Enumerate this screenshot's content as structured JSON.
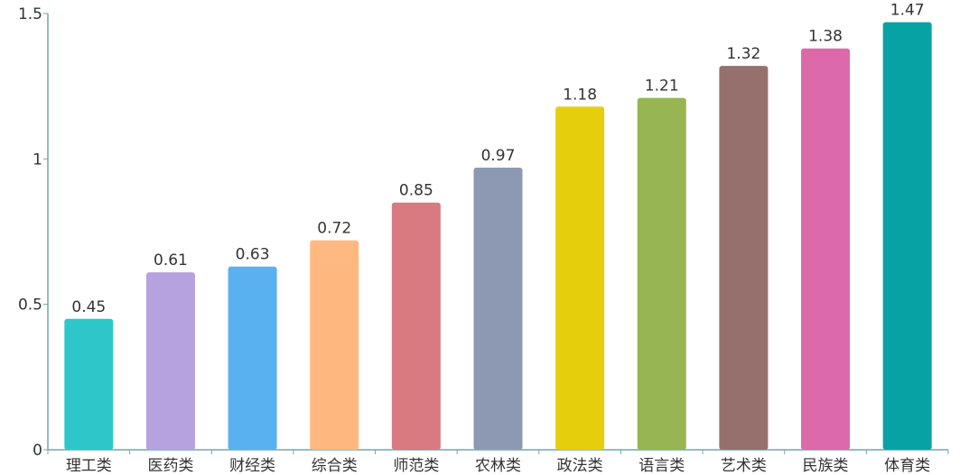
{
  "chart_data": {
    "type": "bar",
    "categories": [
      "理工类",
      "医药类",
      "财经类",
      "综合类",
      "师范类",
      "农林类",
      "政法类",
      "语言类",
      "艺术类",
      "民族类",
      "体育类"
    ],
    "values": [
      0.45,
      0.61,
      0.63,
      0.72,
      0.85,
      0.97,
      1.18,
      1.21,
      1.32,
      1.38,
      1.47
    ],
    "colors": [
      "#2ec7c9",
      "#b6a2de",
      "#5ab1ef",
      "#ffb980",
      "#d87a80",
      "#8d98b3",
      "#e5cf0d",
      "#97b552",
      "#95706d",
      "#dc69aa",
      "#07a2a4"
    ],
    "yticks": [
      "0",
      "0.5",
      "1",
      "1.5"
    ],
    "ylim": [
      0,
      1.5
    ],
    "grid": false,
    "data_labels": [
      "0.45",
      "0.61",
      "0.63",
      "0.72",
      "0.85",
      "0.97",
      "1.18",
      "1.21",
      "1.32",
      "1.38",
      "1.47"
    ],
    "axis_color": "#6fa8ab"
  }
}
